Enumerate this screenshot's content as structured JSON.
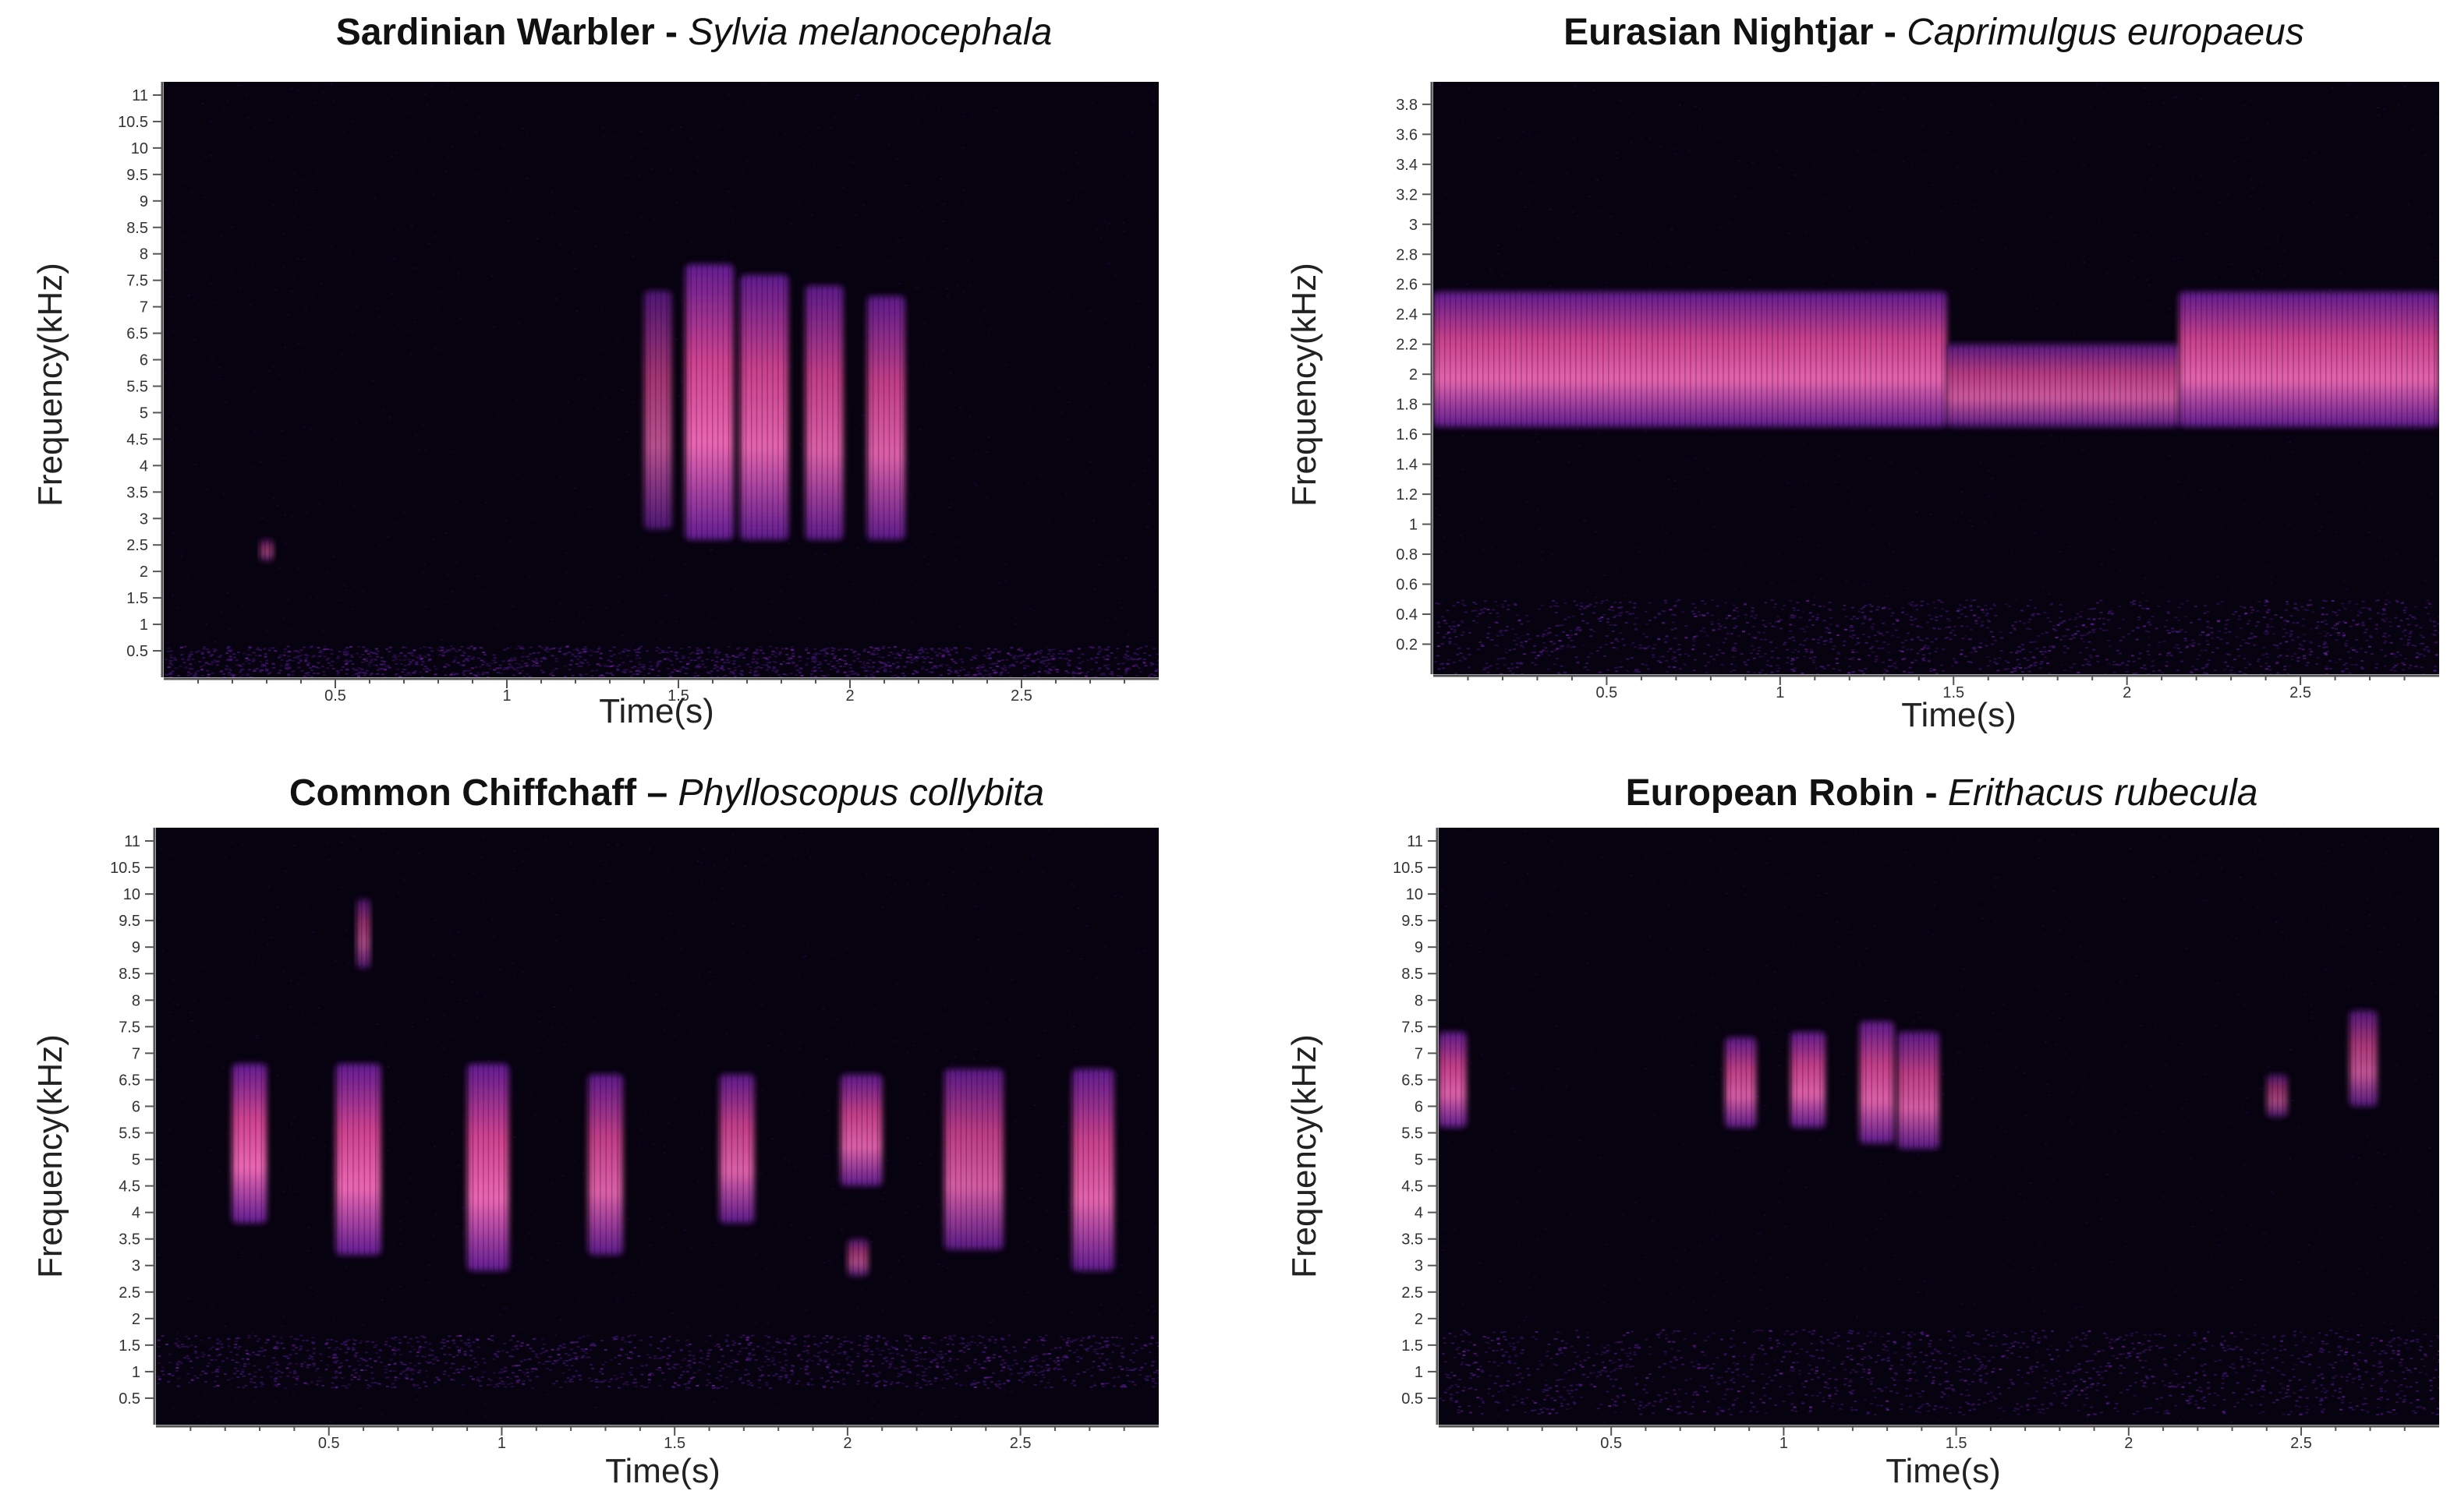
{
  "colors": {
    "background": "#07020f",
    "low": "#1a0838",
    "mid": "#6a1f9e",
    "high": "#e0489a",
    "peak": "#ff6fc0"
  },
  "chart_data": [
    {
      "type": "heatmap",
      "common_name": "Sardinian Warbler",
      "separator": " - ",
      "scientific_name": "Sylvia melanocephala",
      "xlabel": "Time(s)",
      "ylabel": "Frequency(kHz)",
      "xlim": [
        0,
        2.9
      ],
      "ylim": [
        0,
        11.25
      ],
      "x_ticks": [
        "0.5",
        "1",
        "1.5",
        "2",
        "2.5"
      ],
      "y_ticks": [
        "0.5",
        "1",
        "1.5",
        "2",
        "2.5",
        "3",
        "3.5",
        "4",
        "4.5",
        "5",
        "5.5",
        "6",
        "6.5",
        "7",
        "7.5",
        "8",
        "8.5",
        "9",
        "9.5",
        "10",
        "10.5",
        "11"
      ],
      "noise_band_khz": [
        0,
        0.6
      ],
      "events": [
        {
          "t_start": 0.28,
          "t_end": 0.32,
          "f_low": 2.2,
          "f_high": 2.6,
          "intensity": 0.35
        },
        {
          "t_start": 1.4,
          "t_end": 1.48,
          "f_low": 2.8,
          "f_high": 7.3,
          "intensity": 0.6
        },
        {
          "t_start": 1.52,
          "t_end": 1.66,
          "f_low": 2.6,
          "f_high": 7.8,
          "intensity": 0.95
        },
        {
          "t_start": 1.68,
          "t_end": 1.82,
          "f_low": 2.6,
          "f_high": 7.6,
          "intensity": 0.9
        },
        {
          "t_start": 1.87,
          "t_end": 1.98,
          "f_low": 2.6,
          "f_high": 7.4,
          "intensity": 0.85
        },
        {
          "t_start": 2.05,
          "t_end": 2.16,
          "f_low": 2.6,
          "f_high": 7.2,
          "intensity": 0.85
        }
      ]
    },
    {
      "type": "heatmap",
      "common_name": "Eurasian Nightjar",
      "separator": " - ",
      "scientific_name": "Caprimulgus europaeus",
      "xlabel": "Time(s)",
      "ylabel": "Frequency(kHz)",
      "xlim": [
        0,
        2.9
      ],
      "ylim": [
        0,
        3.95
      ],
      "x_ticks": [
        "0.5",
        "1",
        "1.5",
        "2",
        "2.5"
      ],
      "y_ticks": [
        "0.2",
        "0.4",
        "0.6",
        "0.8",
        "1",
        "1.2",
        "1.4",
        "1.6",
        "1.8",
        "2",
        "2.2",
        "2.4",
        "2.6",
        "2.8",
        "3",
        "3.2",
        "3.4",
        "3.6",
        "3.8"
      ],
      "noise_band_khz": [
        0,
        0.5
      ],
      "events": [
        {
          "t_start": 0.0,
          "t_end": 1.48,
          "f_low": 1.65,
          "f_high": 2.55,
          "intensity": 0.9
        },
        {
          "t_start": 1.48,
          "t_end": 2.15,
          "f_low": 1.65,
          "f_high": 2.2,
          "intensity": 0.75
        },
        {
          "t_start": 2.15,
          "t_end": 2.9,
          "f_low": 1.65,
          "f_high": 2.55,
          "intensity": 0.9
        }
      ]
    },
    {
      "type": "heatmap",
      "common_name": "Common Chiffchaff",
      "separator": " – ",
      "scientific_name": "Phylloscopus collybita",
      "xlabel": "Time(s)",
      "ylabel": "Frequency(kHz)",
      "xlim": [
        0,
        2.9
      ],
      "ylim": [
        0,
        11.25
      ],
      "x_ticks": [
        "0.5",
        "1",
        "1.5",
        "2",
        "2.5"
      ],
      "y_ticks": [
        "0.5",
        "1",
        "1.5",
        "2",
        "2.5",
        "3",
        "3.5",
        "4",
        "4.5",
        "5",
        "5.5",
        "6",
        "6.5",
        "7",
        "7.5",
        "8",
        "8.5",
        "9",
        "9.5",
        "10",
        "10.5",
        "11"
      ],
      "noise_band_khz": [
        0.7,
        1.7
      ],
      "events": [
        {
          "t_start": 0.22,
          "t_end": 0.32,
          "f_low": 3.8,
          "f_high": 6.8,
          "intensity": 0.95
        },
        {
          "t_start": 0.52,
          "t_end": 0.65,
          "f_low": 3.2,
          "f_high": 6.8,
          "intensity": 0.95
        },
        {
          "t_start": 0.58,
          "t_end": 0.62,
          "f_low": 8.6,
          "f_high": 9.9,
          "intensity": 0.5
        },
        {
          "t_start": 0.9,
          "t_end": 1.02,
          "f_low": 2.9,
          "f_high": 6.8,
          "intensity": 0.95
        },
        {
          "t_start": 1.25,
          "t_end": 1.35,
          "f_low": 3.2,
          "f_high": 6.6,
          "intensity": 0.85
        },
        {
          "t_start": 1.63,
          "t_end": 1.73,
          "f_low": 3.8,
          "f_high": 6.6,
          "intensity": 0.85
        },
        {
          "t_start": 1.98,
          "t_end": 2.1,
          "f_low": 4.5,
          "f_high": 6.6,
          "intensity": 0.85
        },
        {
          "t_start": 2.0,
          "t_end": 2.06,
          "f_low": 2.8,
          "f_high": 3.5,
          "intensity": 0.5
        },
        {
          "t_start": 2.28,
          "t_end": 2.45,
          "f_low": 3.3,
          "f_high": 6.7,
          "intensity": 0.8
        },
        {
          "t_start": 2.65,
          "t_end": 2.77,
          "f_low": 2.9,
          "f_high": 6.7,
          "intensity": 0.9
        }
      ]
    },
    {
      "type": "heatmap",
      "common_name": "European Robin",
      "separator": " - ",
      "scientific_name": "Erithacus rubecula",
      "xlabel": "Time(s)",
      "ylabel": "Frequency(kHz)",
      "xlim": [
        0,
        2.9
      ],
      "ylim": [
        0,
        11.25
      ],
      "x_ticks": [
        "0.5",
        "1",
        "1.5",
        "2",
        "2.5"
      ],
      "y_ticks": [
        "0.5",
        "1",
        "1.5",
        "2",
        "2.5",
        "3",
        "3.5",
        "4",
        "4.5",
        "5",
        "5.5",
        "6",
        "6.5",
        "7",
        "7.5",
        "8",
        "8.5",
        "9",
        "9.5",
        "10",
        "10.5",
        "11"
      ],
      "noise_band_khz": [
        0.2,
        1.8
      ],
      "events": [
        {
          "t_start": 0.0,
          "t_end": 0.08,
          "f_low": 5.6,
          "f_high": 7.4,
          "intensity": 0.85
        },
        {
          "t_start": 0.83,
          "t_end": 0.92,
          "f_low": 5.6,
          "f_high": 7.3,
          "intensity": 0.8
        },
        {
          "t_start": 1.02,
          "t_end": 1.12,
          "f_low": 5.6,
          "f_high": 7.4,
          "intensity": 0.85
        },
        {
          "t_start": 1.22,
          "t_end": 1.32,
          "f_low": 5.3,
          "f_high": 7.6,
          "intensity": 0.85
        },
        {
          "t_start": 1.33,
          "t_end": 1.45,
          "f_low": 5.2,
          "f_high": 7.4,
          "intensity": 0.8
        },
        {
          "t_start": 2.4,
          "t_end": 2.46,
          "f_low": 5.8,
          "f_high": 6.6,
          "intensity": 0.45
        },
        {
          "t_start": 2.64,
          "t_end": 2.72,
          "f_low": 6.0,
          "f_high": 7.8,
          "intensity": 0.65
        }
      ]
    }
  ]
}
